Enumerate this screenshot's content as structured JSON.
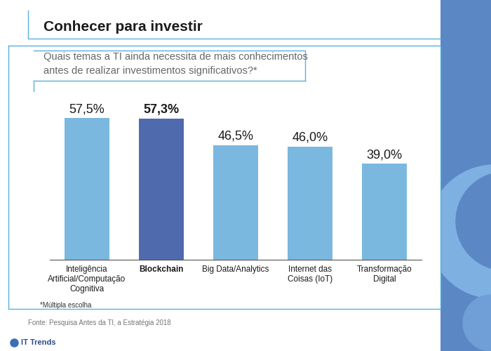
{
  "chart_data": {
    "type": "bar",
    "title": "Conhecer para investir",
    "subtitle": "Quais temas a TI ainda necessita de mais conhecimentos\nantes de realizar investimentos significativos?*",
    "categories": [
      "Inteligência\nArtificial/Computação\nCognitiva",
      "Blockchain",
      "Big Data/Analytics",
      "Internet das\nCoisas (IoT)",
      "Transformação\nDigital"
    ],
    "values": [
      57.5,
      57.3,
      46.5,
      46.0,
      39.0
    ],
    "value_labels": [
      "57,5%",
      "57,3%",
      "46,5%",
      "46,0%",
      "39,0%"
    ],
    "colors": [
      "#7ab8e0",
      "#4f6aad",
      "#7ab8e0",
      "#7ab8e0",
      "#7ab8e0"
    ],
    "ylim": [
      0,
      65
    ],
    "tick_labels": "x",
    "data_labels": true,
    "grid": false,
    "note": "*Múltipla escolha",
    "source": "Fonte: Pesquisa Antes da TI, a Estratégia 2018",
    "brand": "IT Trends"
  }
}
